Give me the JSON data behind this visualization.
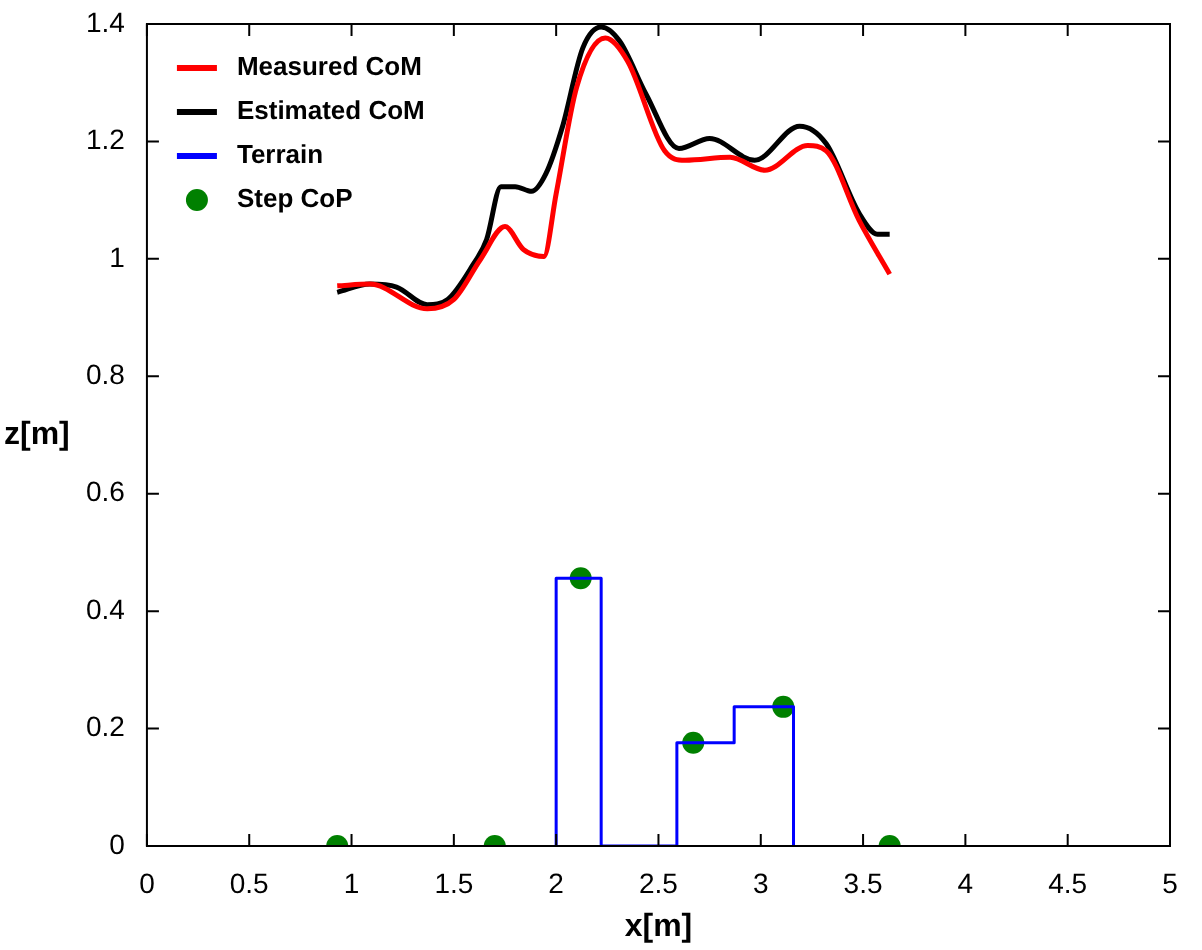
{
  "chart_data": {
    "type": "line",
    "xlabel": "x[m]",
    "ylabel": "z[m]",
    "legend": "top left",
    "grid": false,
    "xlim": [
      0,
      5
    ],
    "xticks": [
      0,
      0.5,
      1,
      1.5,
      2,
      2.5,
      3,
      3.5,
      4,
      4.5,
      5
    ],
    "ylim": [
      0,
      1.4
    ],
    "yticks": [
      0,
      0.2,
      0.4,
      0.6,
      0.8,
      1,
      1.2,
      1.4
    ],
    "series": [
      {
        "name": "Measured CoM",
        "type": "line",
        "color": "#ff0000",
        "x": [
          0.93,
          1.09,
          1.37,
          1.5,
          1.63,
          1.75,
          1.84,
          1.94,
          2.0,
          2.1,
          2.24,
          2.35,
          2.53,
          2.63,
          2.85,
          3.02,
          3.23,
          3.32,
          3.48,
          3.63
        ],
        "values": [
          0.954,
          0.957,
          0.915,
          0.931,
          0.999,
          1.055,
          1.016,
          1.004,
          1.111,
          1.292,
          1.376,
          1.336,
          1.184,
          1.168,
          1.173,
          1.151,
          1.193,
          1.184,
          1.066,
          0.974
        ]
      },
      {
        "name": "Estimated CoM",
        "type": "line",
        "color": "#000000",
        "x": [
          0.93,
          1.09,
          1.22,
          1.37,
          1.47,
          1.59,
          1.66,
          1.73,
          1.8,
          1.88,
          1.95,
          2.03,
          2.13,
          2.22,
          2.31,
          2.44,
          2.6,
          2.75,
          2.97,
          3.19,
          3.32,
          3.48,
          3.57,
          3.63
        ],
        "values": [
          0.943,
          0.957,
          0.952,
          0.922,
          0.931,
          0.988,
          1.033,
          1.123,
          1.123,
          1.115,
          1.145,
          1.224,
          1.359,
          1.395,
          1.371,
          1.28,
          1.188,
          1.205,
          1.168,
          1.226,
          1.196,
          1.078,
          1.042,
          1.042
        ]
      },
      {
        "name": "Terrain",
        "type": "line",
        "color": "#0000ff",
        "x": [
          2.0,
          2.0,
          2.22,
          2.22,
          2.59,
          2.59,
          2.87,
          2.87,
          3.16,
          3.16
        ],
        "values": [
          0,
          0.456,
          0.456,
          0,
          0,
          0.176,
          0.176,
          0.237,
          0.237,
          0
        ]
      },
      {
        "name": "Step CoP",
        "type": "scatter",
        "marker": "circle",
        "color": "#008000",
        "x": [
          0.93,
          1.7,
          2.12,
          2.67,
          3.11,
          3.63
        ],
        "values": [
          0,
          0,
          0.456,
          0.176,
          0.237,
          0
        ]
      }
    ]
  }
}
